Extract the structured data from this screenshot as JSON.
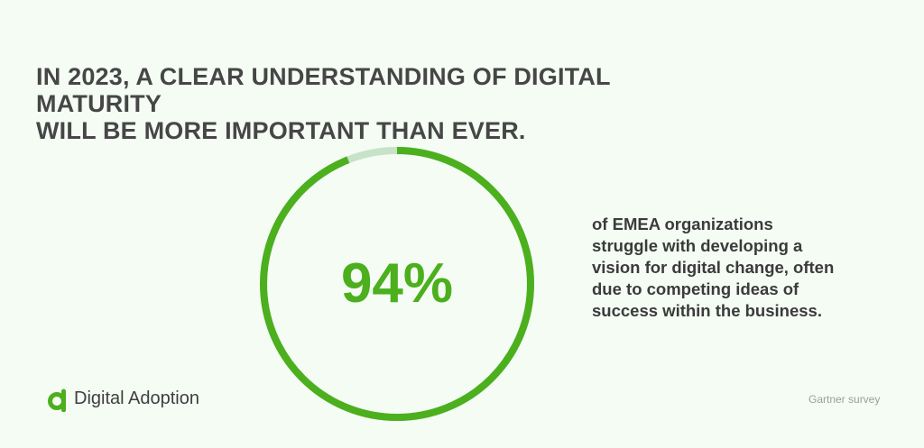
{
  "headline": {
    "line1": "IN 2023, A CLEAR UNDERSTANDING OF DIGITAL MATURITY",
    "line2": "WILL BE MORE IMPORTANT THAN EVER."
  },
  "stat": {
    "value": "94%",
    "fraction": 0.94,
    "ring_color": "#4caf1d",
    "track_color": "#c8e2c8",
    "description_lines": [
      "of EMEA organizations",
      "struggle with developing a",
      "vision for digital change, often",
      "due to competing ideas of",
      "success within the business."
    ]
  },
  "logo": {
    "icon": "digital-adoption-logo-icon",
    "name": "Digital Adoption"
  },
  "source": "Gartner survey"
}
